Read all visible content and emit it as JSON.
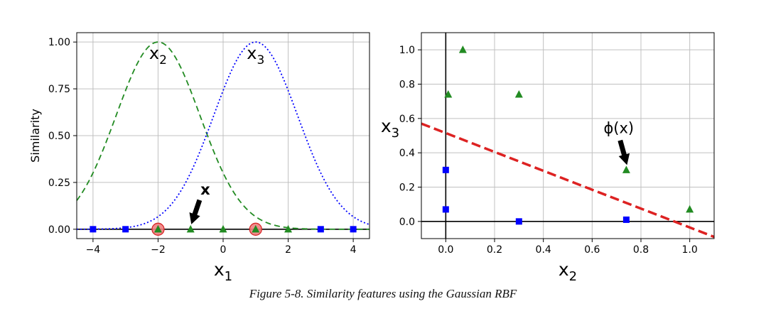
{
  "caption": "Figure 5-8. Similarity features using the Gaussian RBF",
  "colors": {
    "green": "#228b22",
    "blue": "#0000ff",
    "red": "#dd2222",
    "circle_fill": "#ef8080",
    "circle_stroke": "#d62728",
    "grid": "#c0c0c0",
    "axis": "#000000"
  },
  "chart_data": [
    {
      "type": "line",
      "xlabel": "x1",
      "ylabel": "Similarity",
      "xlim": [
        -4.5,
        4.5
      ],
      "ylim": [
        -0.05,
        1.05
      ],
      "xticks": [
        -4,
        -2,
        0,
        2,
        4
      ],
      "xtick_labels": [
        "−4",
        "−2",
        "0",
        "2",
        "4"
      ],
      "yticks": [
        0,
        0.25,
        0.5,
        0.75,
        1.0
      ],
      "ytick_labels": [
        "0.00",
        "0.25",
        "0.50",
        "0.75",
        "1.00"
      ],
      "grid": true,
      "gamma": 0.3,
      "series": [
        {
          "name": "x2",
          "landmark": -2,
          "style": "dashed",
          "color": "green"
        },
        {
          "name": "x3",
          "landmark": 1,
          "style": "dotted",
          "color": "blue"
        }
      ],
      "blue_squares": [
        -4,
        -3,
        3,
        4
      ],
      "green_triangles": [
        -2,
        -1,
        0,
        1,
        2
      ],
      "landmarks_circled": [
        -2,
        1
      ],
      "annotation": {
        "label": "x",
        "x": -1,
        "y": 0
      }
    },
    {
      "type": "scatter",
      "xlabel": "x2",
      "ylabel": "x3",
      "xlim": [
        -0.1,
        1.1
      ],
      "ylim": [
        -0.1,
        1.1
      ],
      "xticks": [
        0,
        0.2,
        0.4,
        0.6,
        0.8,
        1.0
      ],
      "xtick_labels": [
        "0.0",
        "0.2",
        "0.4",
        "0.6",
        "0.8",
        "1.0"
      ],
      "yticks": [
        0,
        0.2,
        0.4,
        0.6,
        0.8,
        1.0
      ],
      "ytick_labels": [
        "0.0",
        "0.2",
        "0.4",
        "0.6",
        "0.8",
        "1.0"
      ],
      "grid": true,
      "blue_squares": [
        [
          0.0,
          0.3
        ],
        [
          0.0,
          0.07
        ],
        [
          0.3,
          0.0
        ],
        [
          0.74,
          0.01
        ]
      ],
      "green_triangles": [
        [
          0.01,
          0.74
        ],
        [
          0.07,
          1.0
        ],
        [
          0.3,
          0.74
        ],
        [
          0.74,
          0.3
        ],
        [
          1.0,
          0.07
        ]
      ],
      "decision_line": {
        "points": [
          [
            -0.1,
            0.57
          ],
          [
            1.1,
            -0.09
          ]
        ],
        "style": "dashed",
        "color": "red"
      },
      "annotation": {
        "label": "ϕ(x)",
        "x": 0.74,
        "y": 0.3
      }
    }
  ]
}
